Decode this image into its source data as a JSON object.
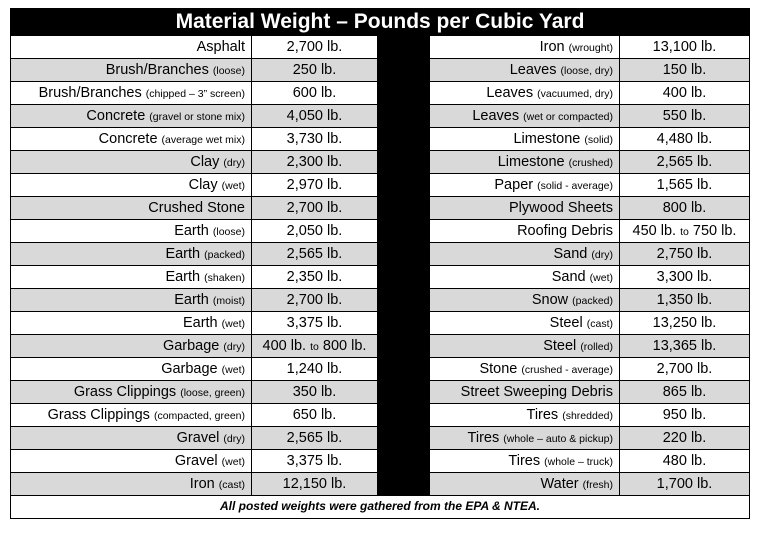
{
  "title": "Material Weight – Pounds per Cubic Yard",
  "footer": "All posted weights were gathered from the EPA & NTEA.",
  "rows": [
    {
      "left": {
        "name": "Asphalt",
        "qual": "",
        "weight": "2,700 lb."
      },
      "right": {
        "name": "Iron",
        "qual": "(wrought)",
        "weight": "13,100 lb."
      }
    },
    {
      "left": {
        "name": "Brush/Branches",
        "qual": "(loose)",
        "weight": "250 lb."
      },
      "right": {
        "name": "Leaves",
        "qual": "(loose, dry)",
        "weight": "150 lb."
      }
    },
    {
      "left": {
        "name": "Brush/Branches",
        "qual": "(chipped – 3” screen)",
        "weight": "600 lb."
      },
      "right": {
        "name": "Leaves",
        "qual": "(vacuumed, dry)",
        "weight": "400 lb."
      }
    },
    {
      "left": {
        "name": "Concrete",
        "qual": "(gravel or stone mix)",
        "weight": "4,050 lb."
      },
      "right": {
        "name": "Leaves",
        "qual": "(wet or compacted)",
        "weight": "550 lb."
      }
    },
    {
      "left": {
        "name": "Concrete",
        "qual": "(average wet mix)",
        "weight": "3,730 lb."
      },
      "right": {
        "name": "Limestone",
        "qual": "(solid)",
        "weight": "4,480 lb."
      }
    },
    {
      "left": {
        "name": "Clay",
        "qual": "(dry)",
        "weight": "2,300 lb."
      },
      "right": {
        "name": "Limestone",
        "qual": "(crushed)",
        "weight": "2,565 lb."
      }
    },
    {
      "left": {
        "name": "Clay",
        "qual": "(wet)",
        "weight": "2,970 lb."
      },
      "right": {
        "name": "Paper",
        "qual": "(solid - average)",
        "weight": "1,565 lb."
      }
    },
    {
      "left": {
        "name": "Crushed Stone",
        "qual": "",
        "weight": "2,700 lb."
      },
      "right": {
        "name": "Plywood Sheets",
        "qual": "",
        "weight": "800 lb."
      }
    },
    {
      "left": {
        "name": "Earth",
        "qual": "(loose)",
        "weight": "2,050 lb."
      },
      "right": {
        "name": "Roofing Debris",
        "qual": "",
        "weight": "450 lb.",
        "weight_to": "to",
        "weight2": "750 lb."
      }
    },
    {
      "left": {
        "name": "Earth",
        "qual": "(packed)",
        "weight": "2,565 lb."
      },
      "right": {
        "name": "Sand",
        "qual": "(dry)",
        "weight": "2,750 lb."
      }
    },
    {
      "left": {
        "name": "Earth",
        "qual": "(shaken)",
        "weight": "2,350 lb."
      },
      "right": {
        "name": "Sand",
        "qual": "(wet)",
        "weight": "3,300 lb."
      }
    },
    {
      "left": {
        "name": "Earth",
        "qual": "(moist)",
        "weight": "2,700 lb."
      },
      "right": {
        "name": "Snow",
        "qual": "(packed)",
        "weight": "1,350 lb."
      }
    },
    {
      "left": {
        "name": "Earth",
        "qual": "(wet)",
        "weight": "3,375 lb."
      },
      "right": {
        "name": "Steel",
        "qual": "(cast)",
        "weight": "13,250 lb."
      }
    },
    {
      "left": {
        "name": "Garbage",
        "qual": "(dry)",
        "weight": "400 lb.",
        "weight_to": "to",
        "weight2": "800 lb."
      },
      "right": {
        "name": "Steel",
        "qual": "(rolled)",
        "weight": "13,365 lb."
      }
    },
    {
      "left": {
        "name": "Garbage",
        "qual": "(wet)",
        "weight": "1,240 lb."
      },
      "right": {
        "name": "Stone",
        "qual": "(crushed - average)",
        "weight": "2,700 lb."
      }
    },
    {
      "left": {
        "name": "Grass Clippings",
        "qual": "(loose, green)",
        "weight": "350 lb."
      },
      "right": {
        "name": "Street Sweeping Debris",
        "qual": "",
        "weight": "865 lb."
      }
    },
    {
      "left": {
        "name": "Grass Clippings",
        "qual": "(compacted, green)",
        "weight": "650 lb."
      },
      "right": {
        "name": "Tires",
        "qual": "(shredded)",
        "weight": "950 lb."
      }
    },
    {
      "left": {
        "name": "Gravel",
        "qual": "(dry)",
        "weight": "2,565 lb."
      },
      "right": {
        "name": "Tires",
        "qual": "(whole – auto & pickup)",
        "weight": "220 lb."
      }
    },
    {
      "left": {
        "name": "Gravel",
        "qual": "(wet)",
        "weight": "3,375 lb."
      },
      "right": {
        "name": "Tires",
        "qual": "(whole – truck)",
        "weight": "480 lb."
      }
    },
    {
      "left": {
        "name": "Iron",
        "qual": "(cast)",
        "weight": "12,150 lb."
      },
      "right": {
        "name": "Water",
        "qual": "(fresh)",
        "weight": "1,700 lb."
      }
    }
  ]
}
